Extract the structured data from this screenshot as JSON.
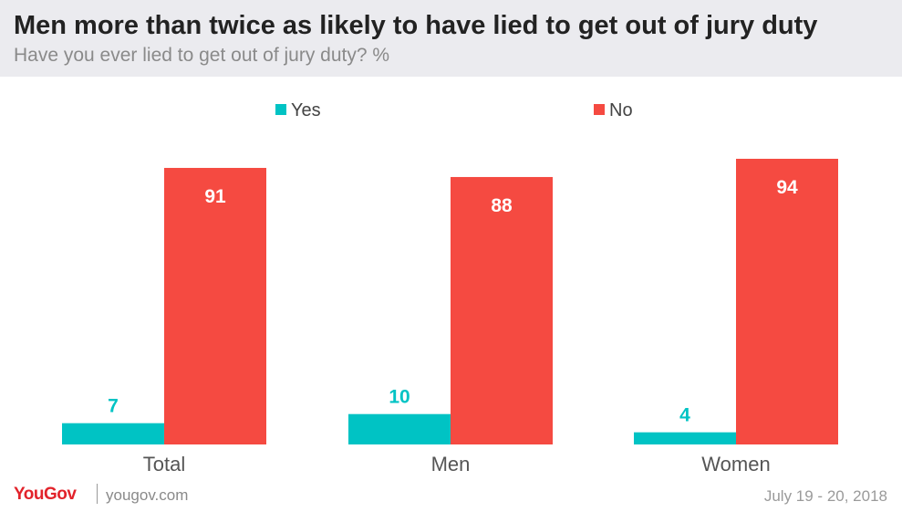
{
  "header": {
    "title": "Men more than twice as likely to have lied to get out of jury duty",
    "subtitle": "Have you ever lied to get out of jury duty? %"
  },
  "chart_data": {
    "type": "bar",
    "title": "Men more than twice as likely to have lied to get out of jury duty",
    "subtitle": "Have you ever lied to get out of jury duty? %",
    "categories": [
      "Total",
      "Men",
      "Women"
    ],
    "series": [
      {
        "name": "Yes",
        "values": [
          7,
          10,
          4
        ],
        "color": "#00c3c4"
      },
      {
        "name": "No",
        "values": [
          91,
          88,
          94
        ],
        "color": "#f54a41"
      }
    ],
    "ylim": [
      0,
      100
    ],
    "grid": false,
    "legend": "top-center",
    "data_labels": true
  },
  "footer": {
    "logo": "YouGov",
    "site": "yougov.com",
    "date": "July 19 - 20, 2018"
  }
}
